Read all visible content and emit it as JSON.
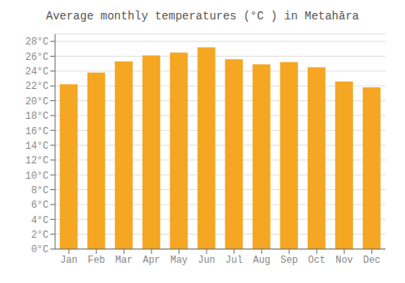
{
  "chart_data": {
    "type": "bar",
    "title": "Average monthly temperatures (°C ) in Metahāra",
    "categories": [
      "Jan",
      "Feb",
      "Mar",
      "Apr",
      "May",
      "Jun",
      "Jul",
      "Aug",
      "Sep",
      "Oct",
      "Nov",
      "Dec"
    ],
    "values": [
      22.2,
      23.8,
      25.3,
      26.1,
      26.5,
      27.2,
      25.6,
      24.9,
      25.2,
      24.5,
      22.6,
      21.8
    ],
    "color": "#F5A623",
    "ylim": [
      0,
      29
    ],
    "yticks": [
      {
        "value": 0,
        "label": "0°C"
      },
      {
        "value": 2,
        "label": "2°C"
      },
      {
        "value": 4,
        "label": "4°C"
      },
      {
        "value": 6,
        "label": "6°C"
      },
      {
        "value": 8,
        "label": "8°C"
      },
      {
        "value": 10,
        "label": "10°C"
      },
      {
        "value": 12,
        "label": "12°C"
      },
      {
        "value": 14,
        "label": "14°C"
      },
      {
        "value": 16,
        "label": "16°C"
      },
      {
        "value": 18,
        "label": "18°C"
      },
      {
        "value": 20,
        "label": "20°C"
      },
      {
        "value": 22,
        "label": "22°C"
      },
      {
        "value": 24,
        "label": "24°C"
      },
      {
        "value": 26,
        "label": "26°C"
      },
      {
        "value": 28,
        "label": "28°C"
      }
    ],
    "grid": true
  }
}
